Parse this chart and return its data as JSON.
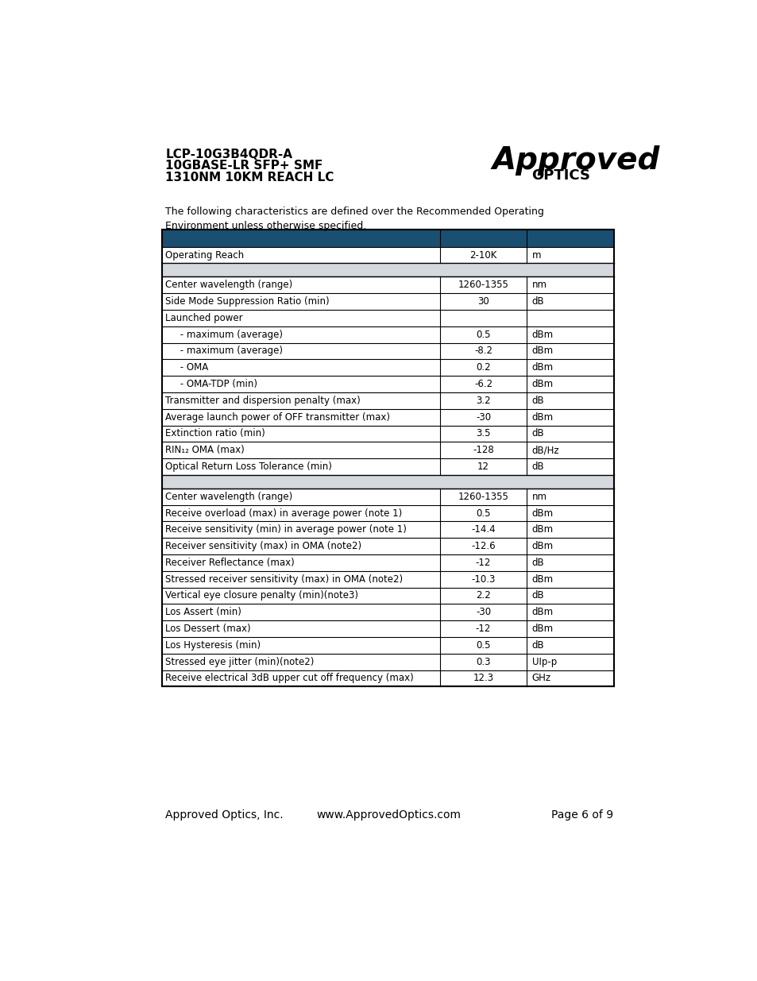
{
  "header_line1": "LCP-10G3B4QDR-A",
  "header_line2": "10GBASE-LR SFP+ SMF",
  "header_line3": "1310NM 10KM REACH LC",
  "intro_text": "The following characteristics are defined over the Recommended Operating\nEnvironment unless otherwise specified.",
  "header_color": "#1B4F72",
  "separator_color": "#D5D8DC",
  "rows": [
    {
      "label": "Operating Reach",
      "value": "2-10K",
      "unit": "m",
      "type": "data",
      "indent": 0
    },
    {
      "label": "",
      "value": "",
      "unit": "",
      "type": "section_sep"
    },
    {
      "label": "Center wavelength (range)",
      "value": "1260-1355",
      "unit": "nm",
      "type": "data",
      "indent": 0
    },
    {
      "label": "Side Mode Suppression Ratio (min)",
      "value": "30",
      "unit": "dB",
      "type": "data",
      "indent": 0
    },
    {
      "label": "Launched power",
      "value": "",
      "unit": "",
      "type": "data",
      "indent": 0
    },
    {
      "label": "     - maximum (average)",
      "value": "0.5",
      "unit": "dBm",
      "type": "data",
      "indent": 1
    },
    {
      "label": "     - maximum (average)",
      "value": "-8.2",
      "unit": "dBm",
      "type": "data",
      "indent": 1
    },
    {
      "label": "     - OMA",
      "value": "0.2",
      "unit": "dBm",
      "type": "data",
      "indent": 1
    },
    {
      "label": "     - OMA-TDP (min)",
      "value": "-6.2",
      "unit": "dBm",
      "type": "data",
      "indent": 1
    },
    {
      "label": "Transmitter and dispersion penalty (max)",
      "value": "3.2",
      "unit": "dB",
      "type": "data",
      "indent": 0
    },
    {
      "label": "Average launch power of OFF transmitter (max)",
      "value": "-30",
      "unit": "dBm",
      "type": "data",
      "indent": 0
    },
    {
      "label": "Extinction ratio (min)",
      "value": "3.5",
      "unit": "dB",
      "type": "data",
      "indent": 0
    },
    {
      "label": "RIN₁₂ OMA (max)",
      "value": "-128",
      "unit": "dB/Hz",
      "type": "data",
      "indent": 0
    },
    {
      "label": "Optical Return Loss Tolerance (min)",
      "value": "12",
      "unit": "dB",
      "type": "data",
      "indent": 0
    },
    {
      "label": "",
      "value": "",
      "unit": "",
      "type": "section_sep"
    },
    {
      "label": "Center wavelength (range)",
      "value": "1260-1355",
      "unit": "nm",
      "type": "data",
      "indent": 0
    },
    {
      "label": "Receive overload (max) in average power (note 1)",
      "value": "0.5",
      "unit": "dBm",
      "type": "data",
      "indent": 0
    },
    {
      "label": "Receive sensitivity (min) in average power (note 1)",
      "value": "-14.4",
      "unit": "dBm",
      "type": "data",
      "indent": 0
    },
    {
      "label": "Receiver sensitivity (max) in OMA (note2)",
      "value": "-12.6",
      "unit": "dBm",
      "type": "data",
      "indent": 0
    },
    {
      "label": "Receiver Reflectance (max)",
      "value": "-12",
      "unit": "dB",
      "type": "data",
      "indent": 0
    },
    {
      "label": "Stressed receiver sensitivity (max) in OMA (note2)",
      "value": "-10.3",
      "unit": "dBm",
      "type": "data",
      "indent": 0
    },
    {
      "label": "Vertical eye closure penalty (min)(note3)",
      "value": "2.2",
      "unit": "dB",
      "type": "data",
      "indent": 0
    },
    {
      "label": "Los Assert (min)",
      "value": "-30",
      "unit": "dBm",
      "type": "data",
      "indent": 0
    },
    {
      "label": "Los Dessert (max)",
      "value": "-12",
      "unit": "dBm",
      "type": "data",
      "indent": 0
    },
    {
      "label": "Los Hysteresis (min)",
      "value": "0.5",
      "unit": "dB",
      "type": "data",
      "indent": 0
    },
    {
      "label": "Stressed eye jitter (min)(note2)",
      "value": "0.3",
      "unit": "UIp-p",
      "type": "data",
      "indent": 0
    },
    {
      "label": "Receive electrical 3dB upper cut off frequency (max)",
      "value": "12.3",
      "unit": "GHz",
      "type": "data",
      "indent": 0
    }
  ],
  "footer_left": "Approved Optics, Inc.",
  "footer_center": "www.ApprovedOptics.com",
  "footer_right": "Page 6 of 9"
}
